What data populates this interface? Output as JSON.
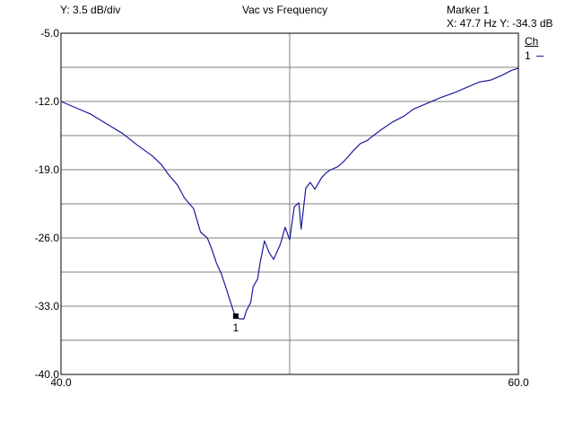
{
  "header": {
    "scale": "Y: 3.5 dB/div",
    "title": "Vac vs Frequency",
    "marker_name": "Marker 1",
    "marker_readout": "X: 47.7  Hz Y: -34.3  dB"
  },
  "legend": {
    "header": "Ch",
    "item": "1"
  },
  "colors": {
    "trace": "#1a1a9c",
    "grid": "#7f7f7f",
    "axes": "#000000",
    "marker": "#000000"
  },
  "chart_data": {
    "type": "line",
    "title": "Vac vs Frequency",
    "xlim": [
      40.0,
      60.0
    ],
    "ylim": [
      -40.0,
      -5.0
    ],
    "x_tick_labels": [
      "40.0",
      "60.0"
    ],
    "y_ticks": [
      -5.0,
      -12.0,
      -19.0,
      -26.0,
      -33.0,
      -40.0
    ],
    "y_tick_labels": [
      "-5.0",
      "-12.0",
      "-19.0",
      "-26.0",
      "-33.0",
      "-40.0"
    ],
    "grid": true,
    "grid_x_lines": [
      50.0
    ],
    "grid_y_lines": [
      -8.5,
      -12.0,
      -15.5,
      -19.0,
      -22.5,
      -26.0,
      -29.5,
      -33.0,
      -36.5
    ],
    "legend_position": "right",
    "series": [
      {
        "name": "1",
        "x": [
          40.0,
          40.6,
          41.3,
          42.0,
          42.7,
          43.3,
          44.0,
          44.4,
          44.7,
          45.1,
          45.4,
          45.8,
          46.1,
          46.4,
          46.6,
          46.8,
          47.0,
          47.2,
          47.4,
          47.6,
          47.7,
          47.8,
          48.0,
          48.1,
          48.3,
          48.4,
          48.6,
          48.7,
          48.9,
          49.1,
          49.3,
          49.6,
          49.8,
          50.0,
          50.2,
          50.4,
          50.5,
          50.7,
          50.9,
          51.1,
          51.4,
          51.6,
          51.8,
          52.1,
          52.3,
          52.5,
          52.8,
          53.1,
          53.4,
          53.6,
          54.0,
          54.5,
          55.0,
          55.4,
          56.0,
          56.6,
          57.2,
          57.8,
          58.3,
          58.8,
          59.3,
          59.7,
          60.0
        ],
        "values": [
          -12.0,
          -12.6,
          -13.3,
          -14.3,
          -15.3,
          -16.4,
          -17.6,
          -18.5,
          -19.5,
          -20.6,
          -21.9,
          -23.0,
          -25.4,
          -26.0,
          -27.2,
          -28.6,
          -29.6,
          -31.0,
          -32.5,
          -33.9,
          -34.1,
          -34.3,
          -34.3,
          -33.5,
          -32.6,
          -31.0,
          -30.2,
          -28.6,
          -26.3,
          -27.5,
          -28.2,
          -26.6,
          -24.9,
          -26.2,
          -22.8,
          -22.4,
          -25.1,
          -20.9,
          -20.3,
          -21.0,
          -19.8,
          -19.3,
          -19.0,
          -18.7,
          -18.3,
          -17.8,
          -17.0,
          -16.3,
          -16.0,
          -15.6,
          -14.9,
          -14.1,
          -13.5,
          -12.8,
          -12.2,
          -11.6,
          -11.1,
          -10.5,
          -10.0,
          -9.8,
          -9.3,
          -8.8,
          -8.6
        ]
      }
    ],
    "marker": {
      "label": "1",
      "x": 47.7,
      "y": -34.3
    }
  }
}
